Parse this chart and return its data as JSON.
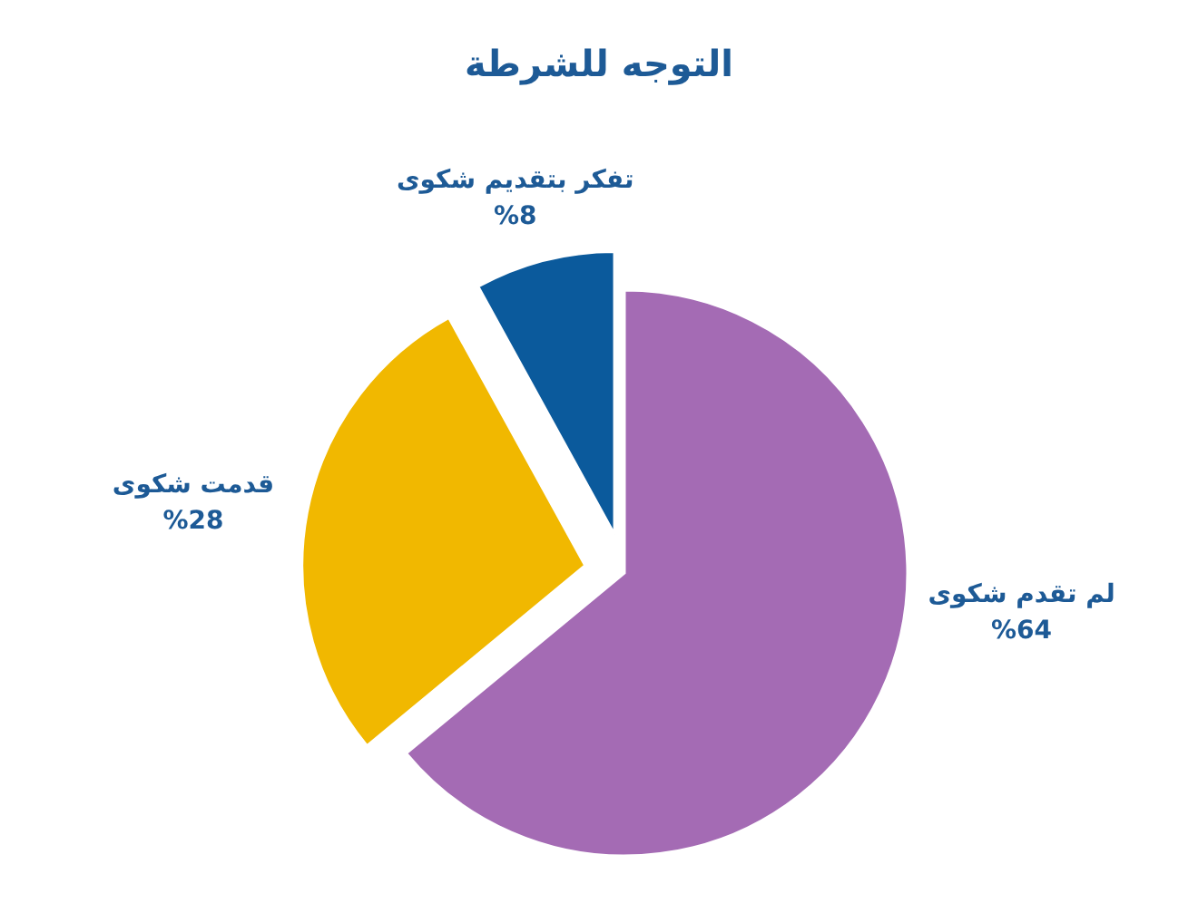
{
  "chart_data": {
    "type": "pie",
    "title": "التوجه للشرطة",
    "categories": [
      "لم تقدم شكوى",
      "قدمت شكوى",
      "تفكر بتقديم شكوى"
    ],
    "values": [
      64,
      28,
      8
    ],
    "colors": [
      "#a46bb4",
      "#f1b800",
      "#0b5a9c"
    ],
    "value_labels": [
      "%64",
      "%28",
      "%8"
    ]
  }
}
